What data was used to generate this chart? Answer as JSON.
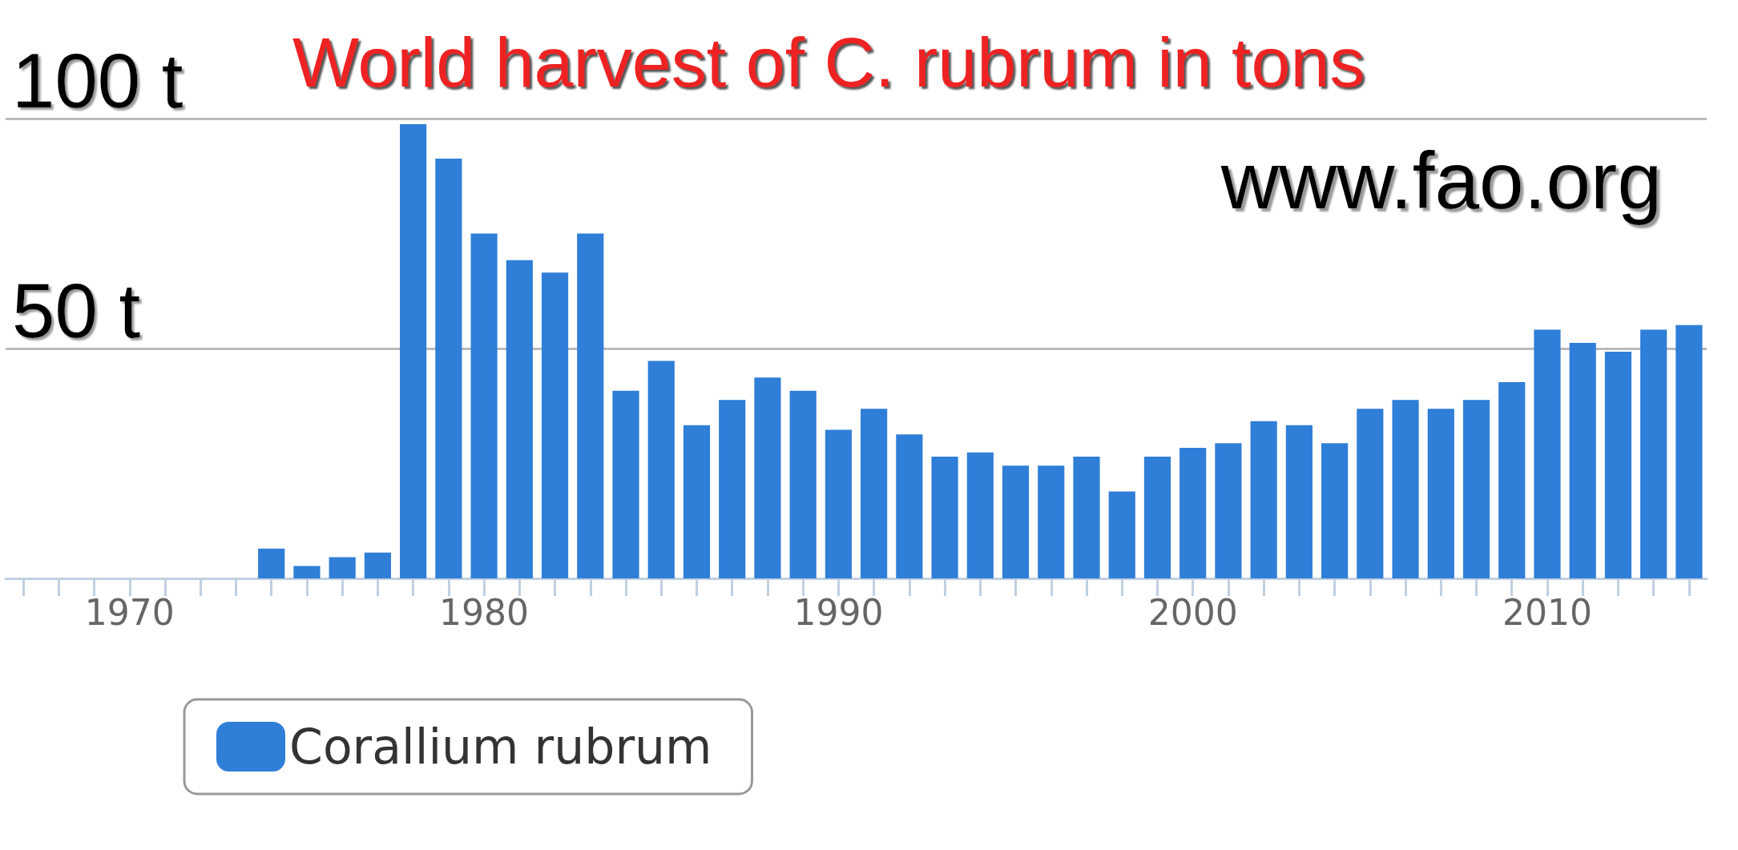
{
  "chart_data": {
    "type": "bar",
    "title": "World harvest of C. rubrum in tons",
    "annotations": [
      "www.fao.org"
    ],
    "categories": [
      null,
      null,
      null,
      "1970",
      null,
      null,
      null,
      null,
      null,
      null,
      null,
      null,
      null,
      "1980",
      null,
      null,
      null,
      null,
      null,
      null,
      null,
      null,
      null,
      "1990",
      null,
      null,
      null,
      null,
      null,
      null,
      null,
      null,
      null,
      "2000",
      null,
      null,
      null,
      null,
      null,
      null,
      null,
      null,
      null,
      "2010",
      null,
      null,
      null,
      null
    ],
    "series": [
      {
        "name": "Corallium rubrum",
        "color": "#2f7ed8",
        "values": [
          null,
          null,
          null,
          null,
          null,
          null,
          null,
          6.5,
          2.7,
          4.6,
          5.6,
          98.8,
          91.3,
          75,
          69.2,
          66.5,
          75,
          40.8,
          47.3,
          33.3,
          38.8,
          43.7,
          40.8,
          32.3,
          36.9,
          31.3,
          26.5,
          27.4,
          24.5,
          24.5,
          26.5,
          18.9,
          26.5,
          28.4,
          29.4,
          34.2,
          33.3,
          29.4,
          36.9,
          38.8,
          36.9,
          38.8,
          42.7,
          54.1,
          51.2,
          49.3,
          54.1,
          55.1
        ]
      }
    ],
    "ylim": [
      0,
      100
    ],
    "yticks": [
      {
        "value": 0,
        "label": null
      },
      {
        "value": 50,
        "label": "50 t"
      },
      {
        "value": 100,
        "label": "100 t"
      }
    ],
    "grid": "y",
    "legend": "bottom left"
  }
}
